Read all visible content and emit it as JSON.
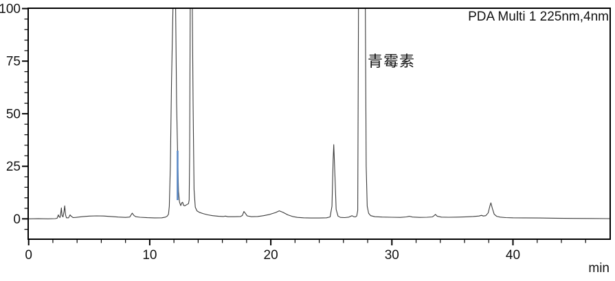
{
  "chart_data": {
    "type": "line",
    "title": "",
    "detector_label": "PDA Multi 1 225nm,4nm",
    "xunit": "min",
    "annotation": {
      "text": "青霉素",
      "time": 28.0,
      "value": 80
    },
    "x_axis": {
      "ticks": [
        0,
        10,
        20,
        30,
        40
      ],
      "minor_step": 2,
      "range": [
        -0.05,
        48.0
      ]
    },
    "y_axis": {
      "ticks": [
        0,
        25,
        50,
        75,
        100
      ],
      "minor_step": 5,
      "range": [
        -9.7,
        100.2
      ]
    },
    "legend_position": "none",
    "grid": false,
    "colors": {
      "trace": "#3a3a3a",
      "frame": "#000000",
      "marker_blue": "#5b8ac6",
      "text": "#111111"
    },
    "marker": {
      "time": 12.3,
      "value_from": 8.9,
      "value_to": 32.4
    },
    "series": [
      {
        "name": "PDA Multi 1 225nm,4nm",
        "points": [
          [
            0,
            0
          ],
          [
            0.8,
            0.05
          ],
          [
            1.6,
            0
          ],
          [
            2.2,
            0.1
          ],
          [
            2.35,
            0.3
          ],
          [
            2.45,
            1.9
          ],
          [
            2.52,
            0.9
          ],
          [
            2.6,
            0.7
          ],
          [
            2.66,
            3.2
          ],
          [
            2.7,
            5.2
          ],
          [
            2.76,
            1.6
          ],
          [
            2.84,
            0.9
          ],
          [
            2.92,
            3.5
          ],
          [
            2.98,
            6.2
          ],
          [
            3.05,
            1.9
          ],
          [
            3.12,
            0.5
          ],
          [
            3.3,
            0.5
          ],
          [
            3.42,
            1.9
          ],
          [
            3.52,
            1.2
          ],
          [
            3.68,
            0.6
          ],
          [
            3.9,
            0.7
          ],
          [
            4.4,
            1.0
          ],
          [
            5.0,
            1.3
          ],
          [
            5.6,
            1.4
          ],
          [
            6.2,
            1.35
          ],
          [
            6.8,
            1.1
          ],
          [
            7.4,
            0.85
          ],
          [
            8.0,
            0.7
          ],
          [
            8.35,
            0.85
          ],
          [
            8.55,
            2.7
          ],
          [
            8.7,
            1.6
          ],
          [
            8.85,
            1.0
          ],
          [
            9.2,
            0.75
          ],
          [
            9.8,
            0.55
          ],
          [
            10.4,
            0.45
          ],
          [
            11.0,
            0.5
          ],
          [
            11.3,
            0.8
          ],
          [
            11.45,
            1.3
          ],
          [
            11.55,
            2.2
          ],
          [
            11.62,
            6
          ],
          [
            11.7,
            25
          ],
          [
            11.8,
            65
          ],
          [
            11.92,
            100
          ],
          [
            12.14,
            100
          ],
          [
            12.22,
            55
          ],
          [
            12.3,
            32
          ],
          [
            12.38,
            13
          ],
          [
            12.46,
            8
          ],
          [
            12.56,
            6.3
          ],
          [
            12.65,
            7.6
          ],
          [
            12.72,
            7.9
          ],
          [
            12.8,
            6.4
          ],
          [
            12.9,
            6.2
          ],
          [
            13.05,
            6.7
          ],
          [
            13.2,
            7.2
          ],
          [
            13.26,
            9
          ],
          [
            13.3,
            30
          ],
          [
            13.34,
            100
          ],
          [
            13.52,
            100
          ],
          [
            13.58,
            55
          ],
          [
            13.66,
            14
          ],
          [
            13.76,
            5.5
          ],
          [
            13.9,
            3.8
          ],
          [
            14.1,
            3.1
          ],
          [
            14.4,
            2.5
          ],
          [
            14.8,
            1.9
          ],
          [
            15.2,
            1.5
          ],
          [
            15.7,
            1.2
          ],
          [
            16.1,
            1.1
          ],
          [
            16.25,
            1.3
          ],
          [
            16.45,
            1.0
          ],
          [
            17.0,
            1.0
          ],
          [
            17.5,
            1.1
          ],
          [
            17.65,
            1.6
          ],
          [
            17.78,
            3.5
          ],
          [
            17.9,
            2.6
          ],
          [
            18.05,
            1.4
          ],
          [
            18.4,
            1.0
          ],
          [
            18.9,
            1.1
          ],
          [
            19.4,
            1.5
          ],
          [
            19.9,
            2.1
          ],
          [
            20.4,
            3.0
          ],
          [
            20.7,
            3.8
          ],
          [
            21.0,
            3.1
          ],
          [
            21.4,
            1.9
          ],
          [
            21.8,
            1.1
          ],
          [
            22.2,
            0.7
          ],
          [
            22.7,
            0.5
          ],
          [
            23.3,
            0.4
          ],
          [
            24.0,
            0.4
          ],
          [
            24.6,
            0.5
          ],
          [
            24.9,
            0.9
          ],
          [
            25.05,
            6
          ],
          [
            25.15,
            28
          ],
          [
            25.2,
            35.3
          ],
          [
            25.3,
            20
          ],
          [
            25.4,
            4.5
          ],
          [
            25.55,
            1.3
          ],
          [
            25.75,
            0.7
          ],
          [
            26.1,
            0.6
          ],
          [
            26.45,
            0.8
          ],
          [
            26.7,
            1.5
          ],
          [
            26.85,
            1.0
          ],
          [
            27.0,
            0.9
          ],
          [
            27.1,
            1.4
          ],
          [
            27.18,
            4
          ],
          [
            27.24,
            100
          ],
          [
            27.81,
            100
          ],
          [
            27.88,
            25
          ],
          [
            27.96,
            6
          ],
          [
            28.08,
            2.6
          ],
          [
            28.25,
            1.5
          ],
          [
            28.6,
            1.0
          ],
          [
            29.2,
            0.85
          ],
          [
            30.0,
            0.75
          ],
          [
            30.7,
            0.7
          ],
          [
            31.2,
            0.9
          ],
          [
            31.45,
            1.2
          ],
          [
            31.7,
            0.85
          ],
          [
            32.3,
            0.7
          ],
          [
            32.9,
            0.75
          ],
          [
            33.35,
            0.9
          ],
          [
            33.5,
            1.6
          ],
          [
            33.6,
            2.1
          ],
          [
            33.75,
            1.2
          ],
          [
            34.1,
            0.8
          ],
          [
            34.7,
            0.75
          ],
          [
            35.4,
            0.8
          ],
          [
            36.1,
            0.95
          ],
          [
            36.7,
            1.1
          ],
          [
            37.2,
            1.35
          ],
          [
            37.4,
            1.65
          ],
          [
            37.55,
            1.35
          ],
          [
            37.75,
            1.5
          ],
          [
            37.95,
            2.8
          ],
          [
            38.1,
            6.2
          ],
          [
            38.18,
            7.6
          ],
          [
            38.3,
            5
          ],
          [
            38.45,
            2.2
          ],
          [
            38.65,
            1.2
          ],
          [
            38.95,
            0.8
          ],
          [
            39.4,
            0.6
          ],
          [
            40.0,
            0.5
          ],
          [
            41.0,
            0.45
          ],
          [
            42.2,
            0.4
          ],
          [
            43.5,
            0.3
          ],
          [
            45.0,
            0.2
          ],
          [
            46.5,
            0.15
          ],
          [
            48.0,
            0.1
          ]
        ]
      }
    ]
  }
}
